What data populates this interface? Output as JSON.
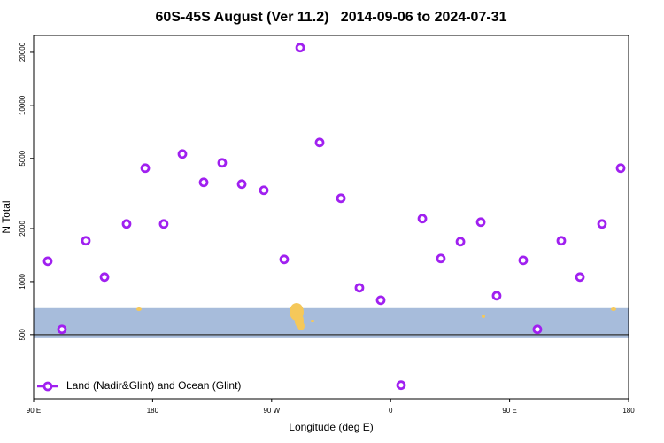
{
  "chart_data": {
    "type": "scatter",
    "title": "60S-45S August (Ver 11.2)   2014-09-06 to 2024-07-31",
    "x_label": "Longitude (deg E)",
    "y_label": "N Total",
    "log_y": true,
    "legend": "lower left",
    "xlim": [
      90,
      540
    ],
    "xticks": [
      {
        "value": 90,
        "label": "90 E"
      },
      180,
      {
        "value": 270,
        "label": "90 W"
      },
      {
        "value": 360,
        "label": "0"
      },
      {
        "value": 450,
        "label": "90 E"
      },
      {
        "value": 540,
        "label": "180"
      }
    ],
    "ylim": [
      217,
      24900
    ],
    "yticks": [
      500,
      1000,
      2000,
      5000,
      10000,
      20000
    ],
    "band": [
      483,
      708
    ],
    "band_color": "#a7bcdb",
    "hline": 500,
    "series": [
      {
        "name": "Land (Nadir&Glint) and Ocean (Glint)",
        "color": "#a020f0",
        "x": [
          100.7,
          111.4,
          129.5,
          143.6,
          160.3,
          174.4,
          188.4,
          202.5,
          218.6,
          232.6,
          247.4,
          264.1,
          279.5,
          291.6,
          306.3,
          322.4,
          336.4,
          352.5,
          367.9,
          384.0,
          398.0,
          412.8,
          428.2,
          440.2,
          460.3,
          471.0,
          489.1,
          503.2,
          519.9,
          534.0
        ],
        "values": [
          1306,
          536,
          1706,
          1061,
          2124,
          4404,
          2124,
          5297,
          3659,
          4720,
          3575,
          3297,
          1337,
          21240,
          6155,
          2970,
          923,
          785,
          259,
          2277,
          1353,
          1686,
          2174,
          832,
          1321,
          536,
          1706,
          1061,
          2124,
          4404
        ]
      }
    ]
  }
}
